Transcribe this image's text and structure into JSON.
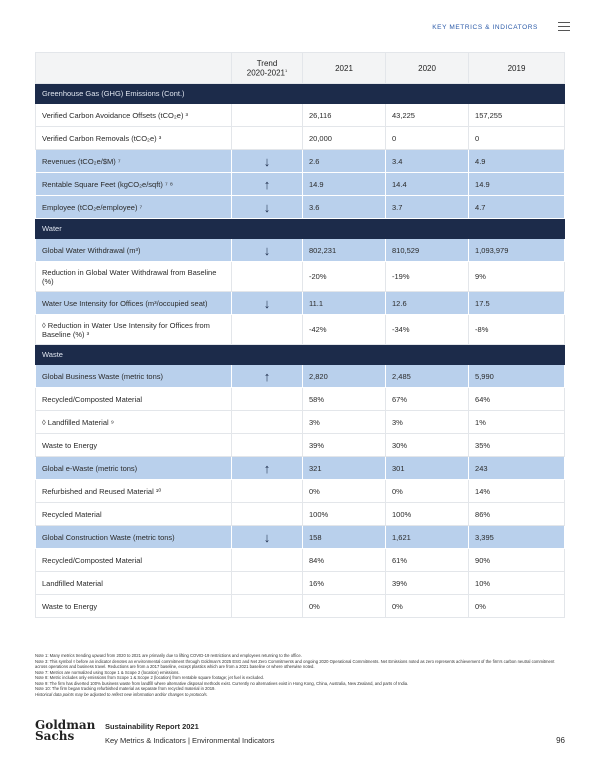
{
  "header": {
    "section": "KEY METRICS & INDICATORS"
  },
  "columns": {
    "trend": "Trend",
    "trend_range": "2020-2021",
    "trend_sup": "1",
    "y2021": "2021",
    "y2020": "2020",
    "y2019": "2019"
  },
  "rows": [
    {
      "type": "section",
      "label": "Greenhouse Gas (GHG) Emissions (Cont.)"
    },
    {
      "label": "Verified Carbon Avoidance Offsets (tCO₂e) ³",
      "trend": "",
      "v2021": "26,116",
      "v2020": "43,225",
      "v2019": "157,255",
      "hl": false
    },
    {
      "label": "Verified Carbon Removals (tCO₂e) ³",
      "trend": "",
      "v2021": "20,000",
      "v2020": "0",
      "v2019": "0",
      "hl": false
    },
    {
      "label": "Revenues (tCO₂e/$M) ⁷",
      "trend": "down",
      "v2021": "2.6",
      "v2020": "3.4",
      "v2019": "4.9",
      "hl": true
    },
    {
      "label": "Rentable Square Feet (kgCO₂e/sqft) ⁷ ⁸",
      "trend": "up",
      "v2021": "14.9",
      "v2020": "14.4",
      "v2019": "14.9",
      "hl": true
    },
    {
      "label": "Employee (tCO₂e/employee) ⁷",
      "trend": "down",
      "v2021": "3.6",
      "v2020": "3.7",
      "v2019": "4.7",
      "hl": true
    },
    {
      "type": "section",
      "label": "Water"
    },
    {
      "label": "Global Water Withdrawal (m³)",
      "trend": "down",
      "v2021": "802,231",
      "v2020": "810,529",
      "v2019": "1,093,979",
      "hl": true
    },
    {
      "label": "Reduction in Global Water Withdrawal from Baseline (%)",
      "trend": "",
      "v2021": "-20%",
      "v2020": "-19%",
      "v2019": "9%",
      "hl": false,
      "two": true
    },
    {
      "label": "Water Use Intensity for Offices (m³/occupied seat)",
      "trend": "down",
      "v2021": "11.1",
      "v2020": "12.6",
      "v2019": "17.5",
      "hl": true
    },
    {
      "label": "◊ Reduction in Water Use Intensity for Offices from Baseline (%) ³",
      "trend": "",
      "v2021": "-42%",
      "v2020": "-34%",
      "v2019": "-8%",
      "hl": false,
      "two": true
    },
    {
      "type": "section",
      "label": "Waste"
    },
    {
      "label": "Global Business Waste (metric tons)",
      "trend": "up",
      "v2021": "2,820",
      "v2020": "2,485",
      "v2019": "5,990",
      "hl": true
    },
    {
      "label": "Recycled/Composted Material",
      "trend": "",
      "v2021": "58%",
      "v2020": "67%",
      "v2019": "64%",
      "hl": false
    },
    {
      "label": "◊ Landfilled Material ⁹",
      "trend": "",
      "v2021": "3%",
      "v2020": "3%",
      "v2019": "1%",
      "hl": false
    },
    {
      "label": "Waste to Energy",
      "trend": "",
      "v2021": "39%",
      "v2020": "30%",
      "v2019": "35%",
      "hl": false
    },
    {
      "label": "Global e-Waste (metric tons)",
      "trend": "up",
      "v2021": "321",
      "v2020": "301",
      "v2019": "243",
      "hl": true
    },
    {
      "label": "Refurbished and Reused Material ¹⁰",
      "trend": "",
      "v2021": "0%",
      "v2020": "0%",
      "v2019": "14%",
      "hl": false
    },
    {
      "label": "Recycled Material",
      "trend": "",
      "v2021": "100%",
      "v2020": "100%",
      "v2019": "86%",
      "hl": false
    },
    {
      "label": "Global Construction Waste (metric tons)",
      "trend": "down",
      "v2021": "158",
      "v2020": "1,621",
      "v2019": "3,395",
      "hl": true
    },
    {
      "label": "Recycled/Composted Material",
      "trend": "",
      "v2021": "84%",
      "v2020": "61%",
      "v2019": "90%",
      "hl": false
    },
    {
      "label": "Landfilled Material",
      "trend": "",
      "v2021": "16%",
      "v2020": "39%",
      "v2019": "10%",
      "hl": false
    },
    {
      "label": "Waste to Energy",
      "trend": "",
      "v2021": "0%",
      "v2020": "0%",
      "v2019": "0%",
      "hl": false
    }
  ],
  "notes": [
    "Note 1: Many metrics trending upward from 2020 to 2021 are primarily due to lifting COVID-19 restrictions and employees returning to the office.",
    "Note 3: This symbol ◊ before an indicator denotes an environmental commitment through Goldman's 2025 ESG and Net Zero Commitments and ongoing 2020 Operational Commitments. Net Emissions noted as zero represents achievement of the firm's carbon neutral commitment across operations and business travel. Reductions are from a 2017 baseline, except plastics which are from a 2021 baseline or where otherwise noted.",
    "Note 7: Metrics are normalized using Scope 1 & Scope 2 (location) emissions.",
    "Note 8: Metric includes only emissions from Scope 1 & Scope 2 (location) from rentable square footage; jet fuel is excluded.",
    "Note 9: The firm has diverted 100% business waste from landfill where alternative disposal methods exist. Currently no alternatives exist in Hong Kong, China, Australia, New Zealand, and parts of India.",
    "Note 10: The firm began tracking refurbished material as separate from recycled material in 2019.",
    "Historical data points may be adjusted to reflect new information and/or changes to protocols."
  ],
  "footer": {
    "logo": "Goldman Sachs",
    "report": "Sustainability Report 2021",
    "section": "Key Metrics & Indicators | Environmental Indicators",
    "page": "96"
  },
  "icons": {
    "up": "↑",
    "down": "↓"
  },
  "colors": {
    "navy": "#1c2b4a",
    "highlight": "#b9d0ec",
    "accent": "#2b5aa8"
  }
}
